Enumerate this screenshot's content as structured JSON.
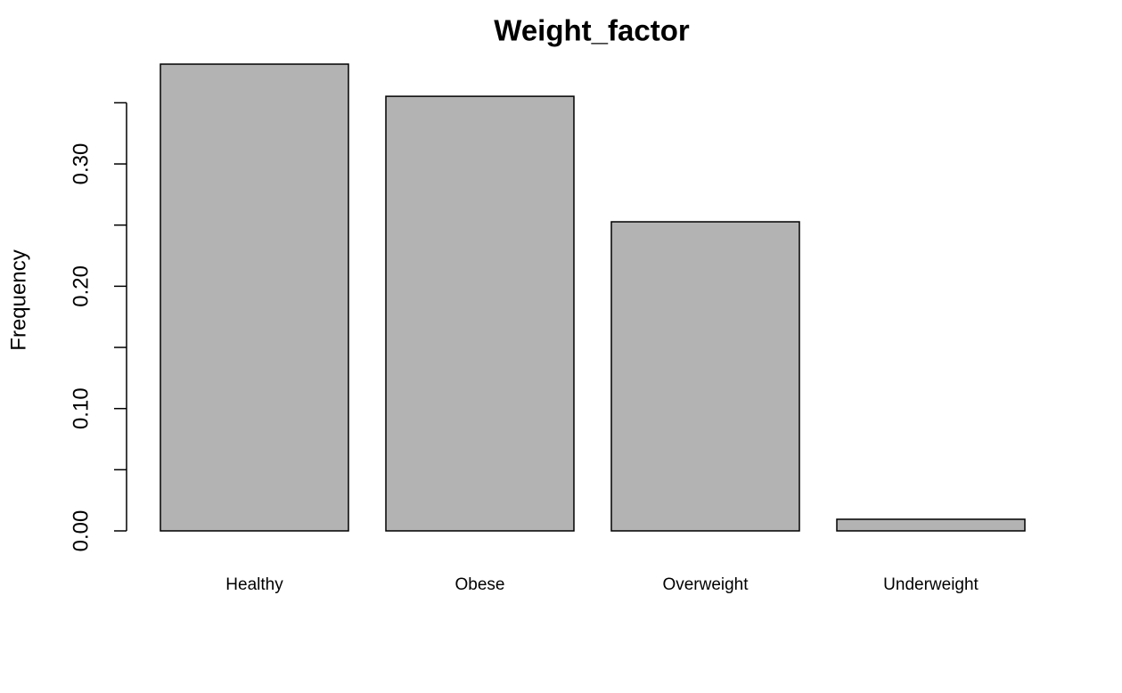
{
  "chart_data": {
    "type": "bar",
    "title": "Weight_factor",
    "y_label": "Frequency",
    "categories": [
      "Healthy",
      "Obese",
      "Overweight",
      "Underweight"
    ],
    "values": [
      0.3816,
      0.3553,
      0.2527,
      0.0095
    ],
    "color": "#b3b3b3",
    "ylim": [
      0,
      0.3816
    ],
    "yticks": [
      {
        "value": 0,
        "label": "0.00"
      },
      {
        "value": 0.1,
        "label": "0.10"
      },
      {
        "value": 0.2,
        "label": "0.20"
      },
      {
        "value": 0.3,
        "label": "0.30"
      }
    ],
    "yminor_ticks": [
      0.05,
      0.15,
      0.25,
      0.35
    ],
    "grid": false
  }
}
